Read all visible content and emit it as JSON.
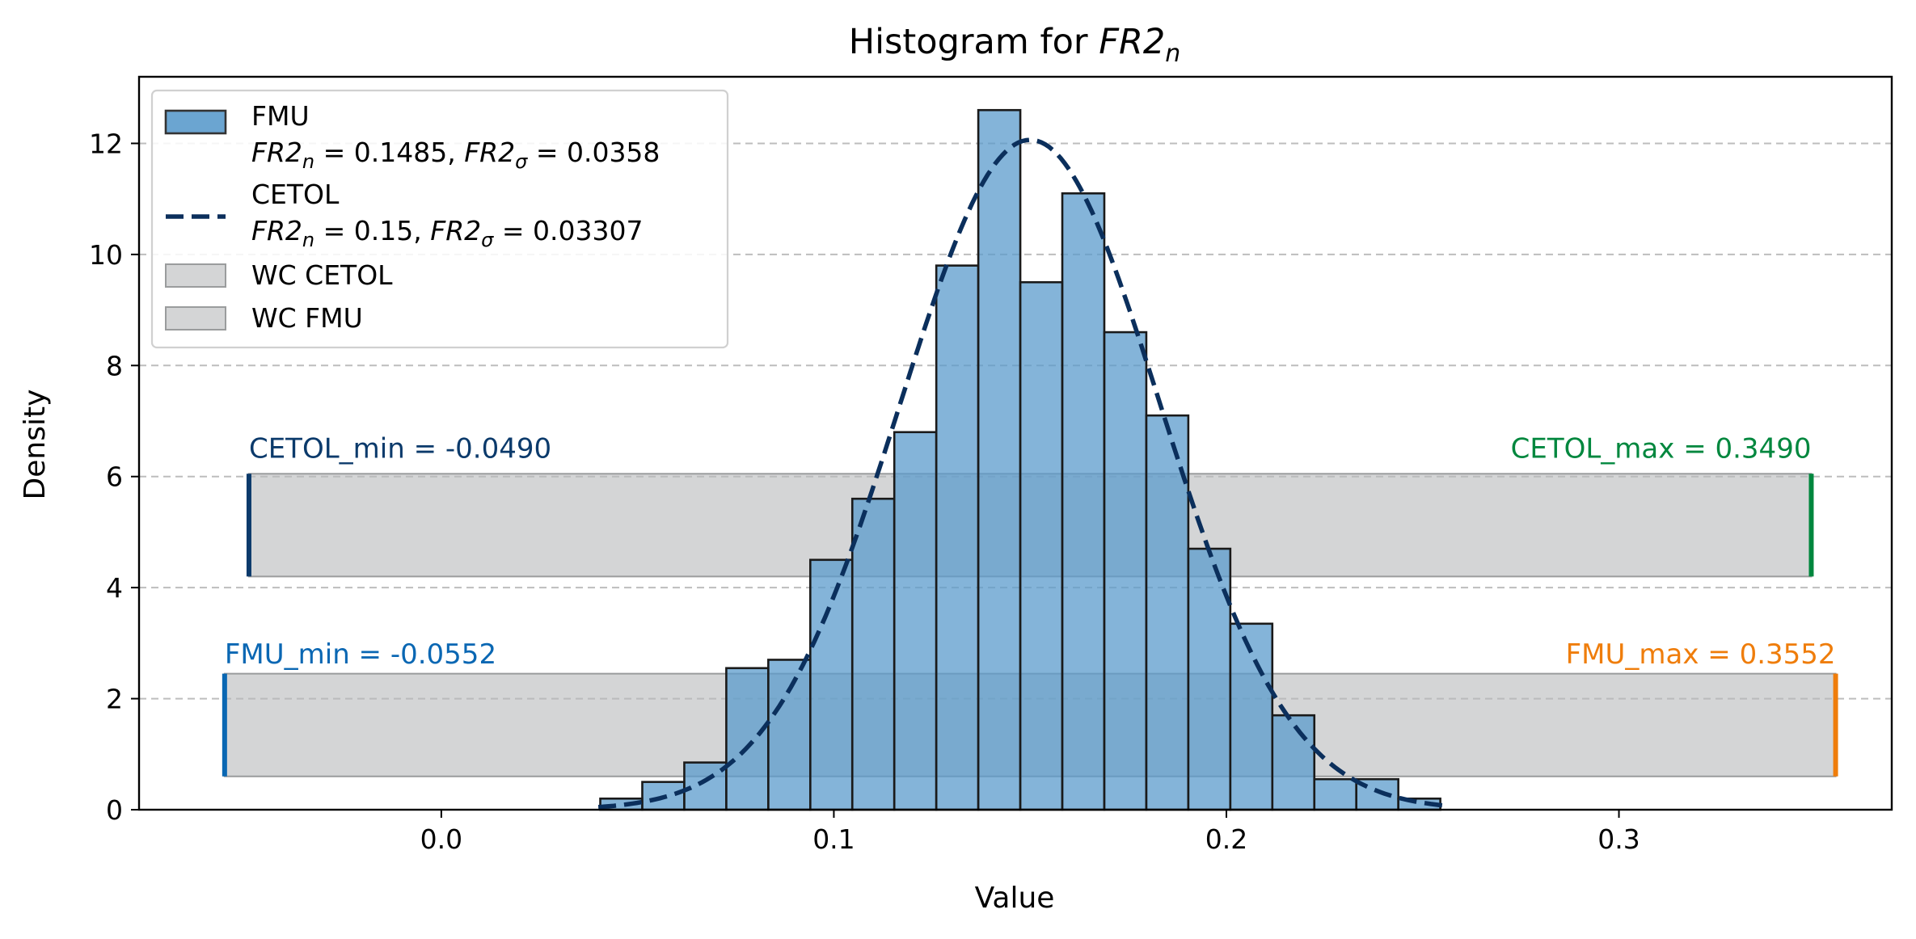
{
  "chart_data": {
    "type": "bar",
    "title": "Histogram for ",
    "title_math": "FR2",
    "title_math_sub": "n",
    "xlabel": "Value",
    "ylabel": "Density",
    "xlim": [
      -0.077,
      0.3695
    ],
    "ylim": [
      0,
      13.2
    ],
    "xticks": [
      "0.0",
      "0.1",
      "0.2",
      "0.3"
    ],
    "xtick_values": [
      0.0,
      0.1,
      0.2,
      0.3
    ],
    "yticks": [
      "0",
      "2",
      "4",
      "6",
      "8",
      "10",
      "12"
    ],
    "ytick_values": [
      0,
      2,
      4,
      6,
      8,
      10,
      12
    ],
    "grid": "y-dashed",
    "legend_position": "top-left",
    "colors": {
      "bar_fill": "#5b9bcc",
      "bar_edge": "#1a1a1a",
      "curve": "#0b2f5c",
      "band": "#b7b9ba",
      "cetol_min": "#0b3a6b",
      "cetol_max": "#00873e",
      "fmu_min": "#0a67b3",
      "fmu_max": "#ef7d0b"
    },
    "histogram": {
      "name": "FMU",
      "bin_edges": [
        0.0405,
        0.0512,
        0.0619,
        0.0726,
        0.0833,
        0.094,
        0.1047,
        0.1154,
        0.1261,
        0.1368,
        0.1475,
        0.1582,
        0.1689,
        0.1796,
        0.1903,
        0.201,
        0.2117,
        0.2224,
        0.2331,
        0.2438,
        0.2545
      ],
      "values": [
        0.2,
        0.5,
        0.85,
        2.55,
        2.7,
        4.5,
        5.6,
        6.8,
        9.8,
        12.6,
        9.5,
        11.1,
        8.6,
        7.1,
        4.7,
        3.35,
        1.7,
        0.55,
        0.55,
        0.2
      ]
    },
    "curve": {
      "name": "CETOL",
      "kind": "normal",
      "mean": 0.15,
      "sigma": 0.03307,
      "x_range": [
        0.04,
        0.256
      ]
    },
    "bands": [
      {
        "name": "WC CETOL",
        "x": [
          -0.049,
          0.349
        ],
        "y": [
          4.2,
          6.05
        ]
      },
      {
        "name": "WC FMU",
        "x": [
          -0.0552,
          0.3552
        ],
        "y": [
          0.6,
          2.45
        ]
      }
    ],
    "annotations": [
      {
        "text": "CETOL_min = -0.0490",
        "x": -0.049,
        "color_key": "cetol_min",
        "anchor": "start",
        "label_y": 6.25,
        "bar_y": [
          4.2,
          6.05
        ]
      },
      {
        "text": "CETOL_max = 0.3490",
        "x": 0.349,
        "color_key": "cetol_max",
        "anchor": "end",
        "label_y": 6.25,
        "bar_y": [
          4.2,
          6.05
        ]
      },
      {
        "text": "FMU_min = -0.0552",
        "x": -0.0552,
        "color_key": "fmu_min",
        "anchor": "start",
        "label_y": 2.55,
        "bar_y": [
          0.6,
          2.45
        ]
      },
      {
        "text": "FMU_max = 0.3552",
        "x": 0.3552,
        "color_key": "fmu_max",
        "anchor": "end",
        "label_y": 2.55,
        "bar_y": [
          0.6,
          2.45
        ]
      }
    ],
    "legend": [
      {
        "kind": "patch",
        "label": "FMU",
        "stats": {
          "a": "FR2",
          "a_sub": "n",
          "a_val": " = 0.1485, ",
          "b": "FR2",
          "b_sub": "σ",
          "b_val": " = 0.0358"
        }
      },
      {
        "kind": "dashed",
        "label": "CETOL",
        "stats": {
          "a": "FR2",
          "a_sub": "n",
          "a_val": " = 0.15, ",
          "b": "FR2",
          "b_sub": "σ",
          "b_val": " = 0.03307"
        }
      },
      {
        "kind": "band",
        "label": "WC CETOL"
      },
      {
        "kind": "band",
        "label": "WC FMU"
      }
    ]
  }
}
